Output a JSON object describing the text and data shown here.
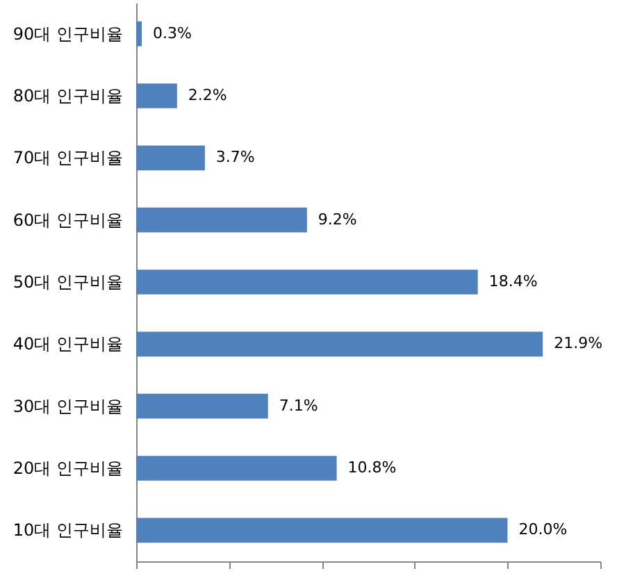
{
  "chart_data": {
    "type": "bar",
    "orientation": "horizontal",
    "categories": [
      "90대 인구비율",
      "80대 인구비율",
      "70대 인구비율",
      "60대 인구비율",
      "50대 인구비율",
      "40대 인구비율",
      "30대 인구비율",
      "20대 인구비율",
      "10대 인구비율"
    ],
    "values": [
      0.3,
      2.2,
      3.7,
      9.2,
      18.4,
      21.9,
      7.1,
      10.8,
      20.0
    ],
    "value_labels": [
      "0.3%",
      "2.2%",
      "3.7%",
      "9.2%",
      "18.4%",
      "21.9%",
      "7.1%",
      "10.8%",
      "20.0%"
    ],
    "color": "#4f81bd",
    "xlim": [
      0,
      25
    ],
    "xticks": [
      {
        "value": 0,
        "label": null
      },
      {
        "value": 5,
        "label": null
      },
      {
        "value": 10,
        "label": null
      },
      {
        "value": 15,
        "label": null
      },
      {
        "value": 20,
        "label": null
      },
      {
        "value": 25,
        "label": null
      }
    ],
    "tick_labels": "y",
    "grid": false
  }
}
